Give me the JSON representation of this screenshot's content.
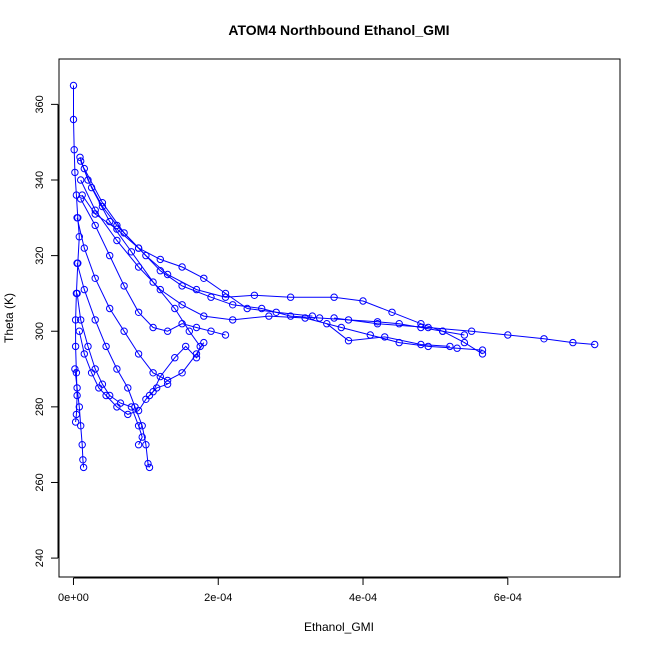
{
  "chart_data": {
    "type": "scatter",
    "title": "ATOM4 Northbound Ethanol_GMI",
    "xlabel": "Ethanol_GMI",
    "ylabel": "Theta (K)",
    "xlim": [
      -2e-05,
      0.000755
    ],
    "ylim": [
      235,
      372
    ],
    "x_ticks": [
      0,
      0.0002,
      0.0004,
      0.0006
    ],
    "x_tick_labels": [
      "0e+00",
      "2e-04",
      "4e-04",
      "6e-04"
    ],
    "y_ticks": [
      240,
      260,
      280,
      300,
      320,
      340,
      360
    ],
    "y_tick_labels": [
      "240",
      "260",
      "280",
      "300",
      "320",
      "340",
      "360"
    ],
    "marker": "open-circle",
    "connected": true,
    "grid": false,
    "color": "#0000ff",
    "series": [
      {
        "points": [
          [
            0.0,
            365
          ],
          [
            0.0,
            356
          ],
          [
            1e-06,
            348
          ],
          [
            2e-06,
            342
          ],
          [
            4e-06,
            336
          ],
          [
            6e-06,
            330
          ],
          [
            8e-06,
            325
          ],
          [
            6e-06,
            318
          ],
          [
            4e-06,
            310
          ],
          [
            3e-06,
            303
          ],
          [
            3e-06,
            296
          ],
          [
            4e-06,
            289
          ],
          [
            5e-06,
            283
          ],
          [
            4e-06,
            278
          ],
          [
            3e-06,
            276
          ]
        ]
      },
      {
        "points": [
          [
            9e-06,
            346
          ],
          [
            2e-05,
            340
          ],
          [
            4e-05,
            333
          ],
          [
            6e-05,
            328
          ],
          [
            9e-05,
            322
          ],
          [
            0.00012,
            316
          ],
          [
            0.00015,
            312
          ],
          [
            0.00019,
            309
          ],
          [
            0.00022,
            307
          ],
          [
            0.00026,
            306
          ],
          [
            0.0003,
            304
          ],
          [
            0.00034,
            303.5
          ],
          [
            0.00038,
            303
          ],
          [
            0.00042,
            302.5
          ],
          [
            0.00045,
            302
          ],
          [
            0.00048,
            301
          ],
          [
            0.00051,
            300
          ],
          [
            0.00054,
            299
          ]
        ]
      },
      {
        "points": [
          [
            1.5e-05,
            343
          ],
          [
            4e-05,
            334
          ],
          [
            7e-05,
            326
          ],
          [
            0.0001,
            320
          ],
          [
            0.00013,
            315
          ],
          [
            0.00017,
            311
          ],
          [
            0.00021,
            309
          ],
          [
            0.00025,
            309.5
          ],
          [
            0.0003,
            309
          ],
          [
            0.00036,
            309
          ],
          [
            0.0004,
            308
          ],
          [
            0.00044,
            305
          ],
          [
            0.00048,
            302
          ],
          [
            0.00051,
            300
          ],
          [
            0.00054,
            297
          ],
          [
            0.000565,
            294
          ]
        ]
      },
      {
        "points": [
          [
            1e-05,
            340
          ],
          [
            3e-05,
            332
          ],
          [
            6e-05,
            324
          ],
          [
            9e-05,
            317
          ],
          [
            0.00012,
            311
          ],
          [
            0.00015,
            307
          ],
          [
            0.00018,
            304
          ],
          [
            0.00022,
            303
          ],
          [
            0.00027,
            304
          ],
          [
            0.00032,
            303.5
          ],
          [
            0.00037,
            301
          ],
          [
            0.00041,
            299
          ],
          [
            0.00045,
            297
          ],
          [
            0.00049,
            296
          ],
          [
            0.00053,
            295.5
          ],
          [
            0.000565,
            295
          ]
        ]
      },
      {
        "points": [
          [
            0.00036,
            303.5
          ],
          [
            0.00042,
            302
          ],
          [
            0.00049,
            301
          ],
          [
            0.00055,
            300
          ],
          [
            0.0006,
            299
          ],
          [
            0.00065,
            298
          ],
          [
            0.00069,
            297
          ],
          [
            0.00072,
            296.5
          ]
        ]
      },
      {
        "points": [
          [
            0.00035,
            302
          ],
          [
            0.00038,
            297.5
          ],
          [
            0.00043,
            298.5
          ],
          [
            0.00048,
            296.5
          ],
          [
            0.00052,
            296
          ]
        ]
      },
      {
        "points": [
          [
            1e-05,
            335
          ],
          [
            3e-05,
            328
          ],
          [
            5e-05,
            320
          ],
          [
            7e-05,
            312
          ],
          [
            9e-05,
            305
          ],
          [
            0.00011,
            301
          ],
          [
            0.00013,
            300
          ],
          [
            0.00015,
            302
          ],
          [
            0.00017,
            301
          ],
          [
            0.00019,
            300
          ],
          [
            0.00021,
            299
          ]
        ]
      },
      {
        "points": [
          [
            5e-06,
            330
          ],
          [
            1.5e-05,
            322
          ],
          [
            3e-05,
            314
          ],
          [
            5e-05,
            306
          ],
          [
            7e-05,
            300
          ],
          [
            9e-05,
            294
          ],
          [
            0.00011,
            289
          ],
          [
            0.00013,
            287
          ],
          [
            0.00015,
            289
          ],
          [
            0.00017,
            294
          ],
          [
            0.00018,
            297
          ]
        ]
      },
      {
        "points": [
          [
            5e-06,
            318
          ],
          [
            1.5e-05,
            311
          ],
          [
            3e-05,
            303
          ],
          [
            4.5e-05,
            296
          ],
          [
            6e-05,
            290
          ],
          [
            7.5e-05,
            285
          ],
          [
            8.5e-05,
            280
          ],
          [
            9.5e-05,
            275
          ],
          [
            0.0001,
            270
          ],
          [
            0.000103,
            265
          ],
          [
            0.000105,
            264
          ]
        ]
      },
      {
        "points": [
          [
            5e-06,
            310
          ],
          [
            1e-05,
            303
          ],
          [
            2e-05,
            296
          ],
          [
            3e-05,
            290
          ],
          [
            4e-05,
            286
          ],
          [
            5e-05,
            283
          ],
          [
            6.5e-05,
            281
          ],
          [
            8e-05,
            280
          ],
          [
            9e-05,
            275
          ],
          [
            9.5e-05,
            272
          ],
          [
            9e-05,
            270
          ]
        ]
      },
      {
        "points": [
          [
            1e-05,
            345
          ],
          [
            2.5e-05,
            338
          ],
          [
            5e-05,
            329
          ],
          [
            8e-05,
            321
          ],
          [
            0.00011,
            313
          ],
          [
            0.00014,
            306
          ],
          [
            0.00016,
            300
          ],
          [
            0.000175,
            296
          ],
          [
            0.00017,
            293
          ],
          [
            0.000155,
            296
          ],
          [
            0.00014,
            293
          ],
          [
            0.00012,
            288
          ],
          [
            0.00011,
            284
          ],
          [
            0.000105,
            283
          ]
        ]
      },
      {
        "points": [
          [
            8e-06,
            300
          ],
          [
            1.5e-05,
            294
          ],
          [
            2.5e-05,
            289
          ],
          [
            3.5e-05,
            285
          ],
          [
            4.5e-05,
            283
          ],
          [
            6e-05,
            280
          ],
          [
            7.5e-05,
            278
          ],
          [
            9e-05,
            279
          ],
          [
            0.0001,
            282
          ],
          [
            0.000115,
            285
          ],
          [
            0.00013,
            286
          ]
        ]
      },
      {
        "points": [
          [
            2e-06,
            290
          ],
          [
            5e-06,
            285
          ],
          [
            8e-06,
            280
          ],
          [
            1e-05,
            275
          ],
          [
            1.2e-05,
            270
          ],
          [
            1.3e-05,
            266
          ],
          [
            1.4e-05,
            264
          ]
        ]
      },
      {
        "points": [
          [
            1.2e-05,
            336
          ],
          [
            3e-05,
            331
          ],
          [
            6e-05,
            327
          ],
          [
            9e-05,
            322
          ],
          [
            0.00012,
            319
          ],
          [
            0.00015,
            317
          ],
          [
            0.00018,
            314
          ],
          [
            0.00021,
            310
          ],
          [
            0.00024,
            306
          ],
          [
            0.00028,
            305
          ],
          [
            0.00033,
            304
          ]
        ]
      }
    ]
  }
}
